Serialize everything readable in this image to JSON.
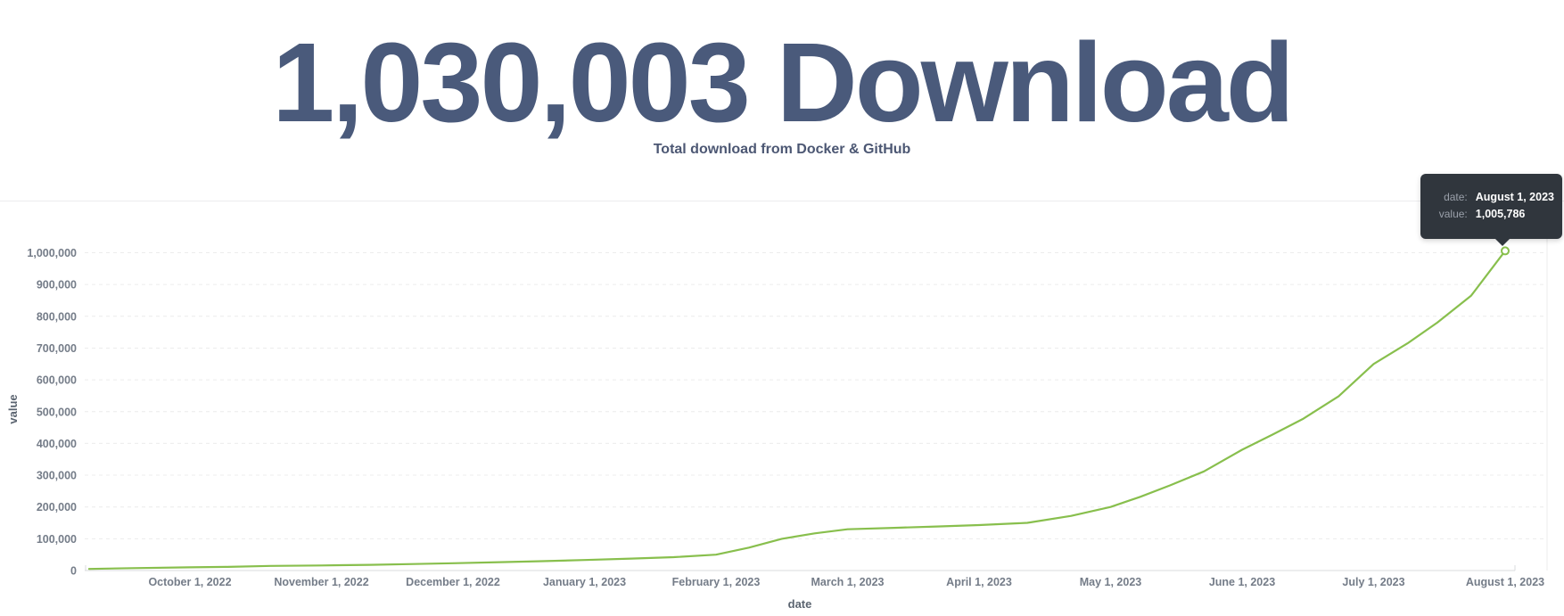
{
  "header": {
    "value": "1,030,003 Download",
    "subtitle": "Total download from Docker & GitHub",
    "value_color": "#4a5a7b"
  },
  "tooltip": {
    "rows": [
      {
        "label": "date:",
        "value": "August 1, 2023"
      },
      {
        "label": "value:",
        "value": "1,005,786"
      }
    ],
    "background": "#30363d"
  },
  "chart_data": {
    "type": "line",
    "title": "",
    "xlabel": "date",
    "ylabel": "value",
    "line_color": "#88bf4d",
    "grid": "dashed-horizontal",
    "legend": "none",
    "ylim": [
      0,
      1000000
    ],
    "y_axis": {
      "title": "value",
      "ticks": [
        {
          "value": 0,
          "label": "0"
        },
        {
          "value": 100000,
          "label": "100,000"
        },
        {
          "value": 200000,
          "label": "200,000"
        },
        {
          "value": 300000,
          "label": "300,000"
        },
        {
          "value": 400000,
          "label": "400,000"
        },
        {
          "value": 500000,
          "label": "500,000"
        },
        {
          "value": 600000,
          "label": "600,000"
        },
        {
          "value": 700000,
          "label": "700,000"
        },
        {
          "value": 800000,
          "label": "800,000"
        },
        {
          "value": 900000,
          "label": "900,000"
        },
        {
          "value": 1000000,
          "label": "1,000,000"
        }
      ]
    },
    "x_axis": {
      "title": "date",
      "ticks": [
        {
          "date": "2022-10-01",
          "label": "October 1, 2022"
        },
        {
          "date": "2022-11-01",
          "label": "November 1, 2022"
        },
        {
          "date": "2022-12-01",
          "label": "December 1, 2022"
        },
        {
          "date": "2023-01-01",
          "label": "January 1, 2023"
        },
        {
          "date": "2023-02-01",
          "label": "February 1, 2023"
        },
        {
          "date": "2023-03-01",
          "label": "March 1, 2023"
        },
        {
          "date": "2023-04-01",
          "label": "April 1, 2023"
        },
        {
          "date": "2023-05-01",
          "label": "May 1, 2023"
        },
        {
          "date": "2023-06-01",
          "label": "June 1, 2023"
        },
        {
          "date": "2023-07-01",
          "label": "July 1, 2023"
        },
        {
          "date": "2023-08-01",
          "label": "August 1, 2023"
        }
      ]
    },
    "points": [
      [
        "2022-09-08",
        5000
      ],
      [
        "2022-09-18",
        7500
      ],
      [
        "2022-10-01",
        10000
      ],
      [
        "2022-10-10",
        11500
      ],
      [
        "2022-10-20",
        14500
      ],
      [
        "2022-11-01",
        16000
      ],
      [
        "2022-11-12",
        18000
      ],
      [
        "2022-11-22",
        20500
      ],
      [
        "2022-12-01",
        23000
      ],
      [
        "2022-12-12",
        26500
      ],
      [
        "2022-12-22",
        29500
      ],
      [
        "2023-01-01",
        33000
      ],
      [
        "2023-01-12",
        37500
      ],
      [
        "2023-01-22",
        42000
      ],
      [
        "2023-02-01",
        50000
      ],
      [
        "2023-02-08",
        72000
      ],
      [
        "2023-02-15",
        100000
      ],
      [
        "2023-02-22",
        117000
      ],
      [
        "2023-03-01",
        130000
      ],
      [
        "2023-03-12",
        134500
      ],
      [
        "2023-03-22",
        138500
      ],
      [
        "2023-04-01",
        143000
      ],
      [
        "2023-04-12",
        150000
      ],
      [
        "2023-04-22",
        172000
      ],
      [
        "2023-05-01",
        200000
      ],
      [
        "2023-05-08",
        232000
      ],
      [
        "2023-05-15",
        268000
      ],
      [
        "2023-05-23",
        312000
      ],
      [
        "2023-06-01",
        380000
      ],
      [
        "2023-06-08",
        428000
      ],
      [
        "2023-06-15",
        478000
      ],
      [
        "2023-06-23",
        548000
      ],
      [
        "2023-07-01",
        650000
      ],
      [
        "2023-07-09",
        715000
      ],
      [
        "2023-07-16",
        780000
      ],
      [
        "2023-07-24",
        865000
      ],
      [
        "2023-08-01",
        1005786
      ]
    ],
    "last_point": {
      "date": "2023-08-01",
      "value": 1005786,
      "marker": "open-circle"
    }
  }
}
